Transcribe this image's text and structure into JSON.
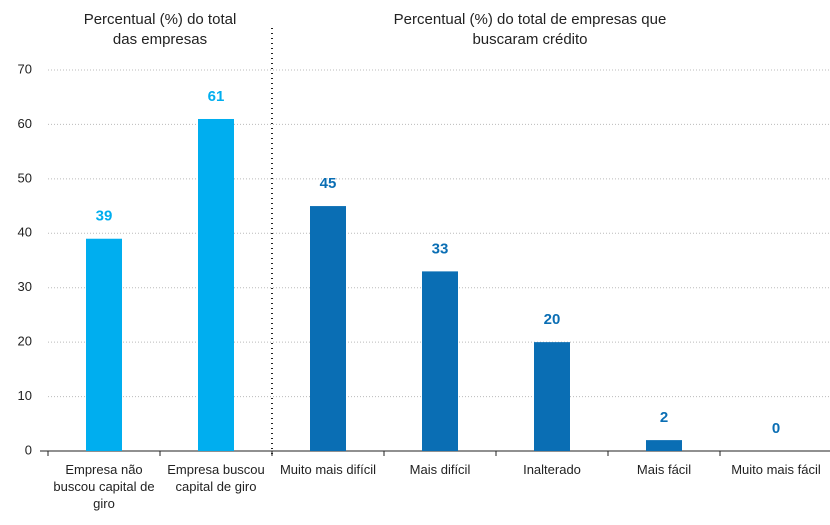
{
  "chart_data": {
    "type": "bar",
    "section_titles": [
      "Percentual (%) do total das empresas",
      "Percentual (%) do total de empresas que buscaram crédito"
    ],
    "categories": [
      "Empresa não buscou capital de giro",
      "Empresa buscou capital de giro",
      "Muito mais difícil",
      "Mais difícil",
      "Inalterado",
      "Mais fácil",
      "Muito mais fácil"
    ],
    "values": [
      39,
      61,
      45,
      33,
      20,
      2,
      0
    ],
    "colors": [
      "#00aeef",
      "#00aeef",
      "#0a6eb4",
      "#0a6eb4",
      "#0a6eb4",
      "#0a6eb4",
      "#0a6eb4"
    ],
    "ylim": [
      0,
      70
    ],
    "yticks": [
      0,
      10,
      20,
      30,
      40,
      50,
      60,
      70
    ],
    "grid": true
  }
}
